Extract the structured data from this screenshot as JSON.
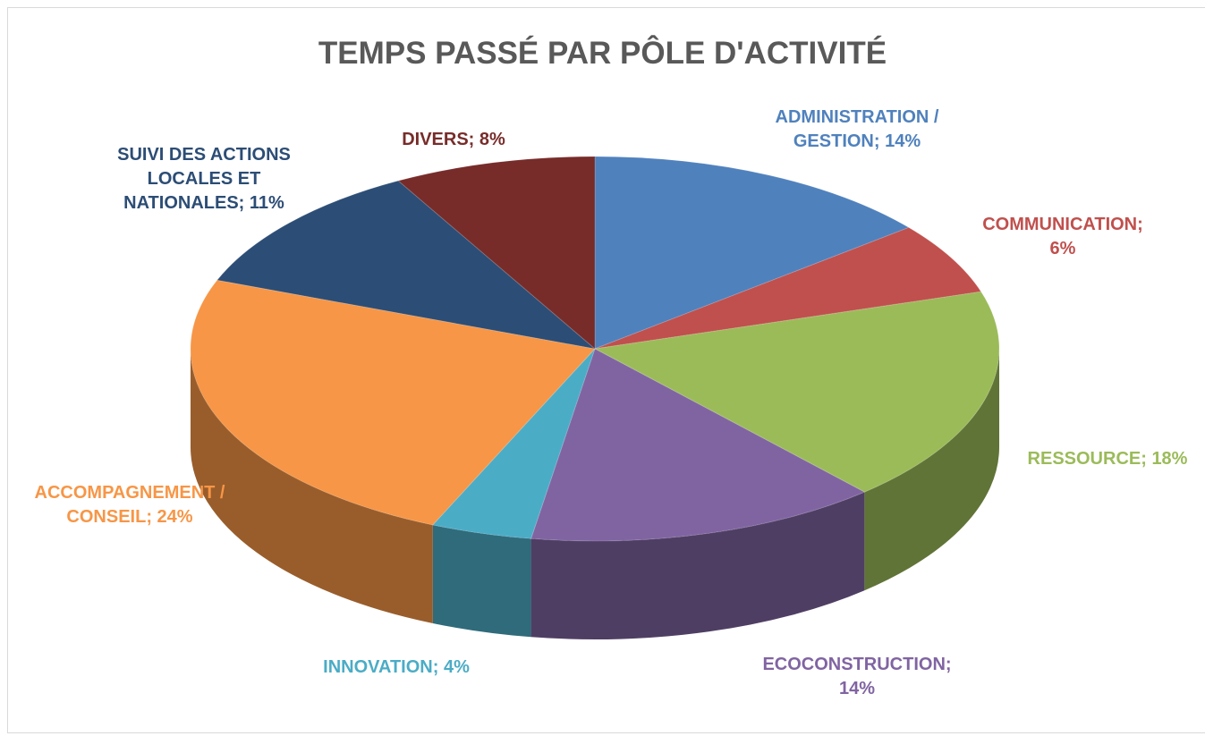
{
  "chart_data": {
    "type": "pie",
    "title": "TEMPS PASSÉ PAR PÔLE D'ACTIVITÉ",
    "values": [
      14,
      6,
      18,
      14,
      4,
      24,
      11,
      8
    ],
    "value_labels": [
      "ADMINISTRATION / GESTION; 14%",
      "COMMUNICATION; 6%",
      "RESSOURCE; 18%",
      "ECOCONSTRUCTION; 14%",
      "INNOVATION; 4%",
      "ACCOMPAGNEMENT / CONSEIL; 24%",
      "SUIVI DES ACTIONS LOCALES ET NATIONALES; 11%",
      "DIVERS; 8%"
    ],
    "colors": [
      "#4f81bd",
      "#c0504d",
      "#9bbb59",
      "#8064a2",
      "#4bacc6",
      "#f79646",
      "#2c4d75",
      "#772c2a"
    ]
  }
}
